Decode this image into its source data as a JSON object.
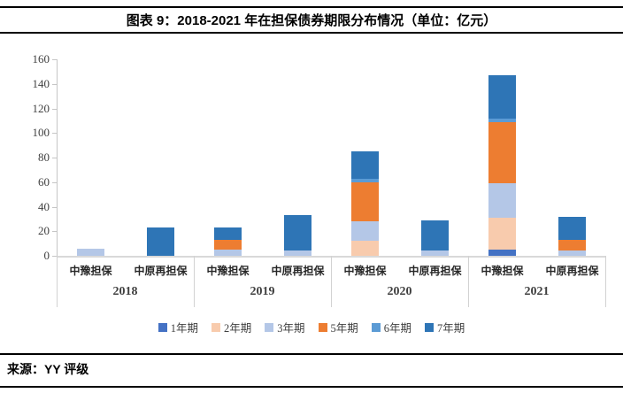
{
  "page": {
    "title": "图表 9：2018-2021 年在担保债券期限分布情况（单位：亿元）",
    "source": "来源：YY 评级"
  },
  "chart_data": {
    "type": "bar",
    "stacked": true,
    "title": "图表 9：2018-2021 年在担保债券期限分布情况（单位：亿元）",
    "unit": "亿元",
    "xlabel": "",
    "ylabel": "",
    "ylim": [
      0,
      160
    ],
    "ytick_step": 20,
    "yticks": [
      0,
      20,
      40,
      60,
      80,
      100,
      120,
      140,
      160
    ],
    "grid": false,
    "legend_position": "bottom",
    "series": [
      {
        "key": "y1",
        "name": "1年期",
        "color": "#4472C4"
      },
      {
        "key": "y2",
        "name": "2年期",
        "color": "#F8CBAD"
      },
      {
        "key": "y3",
        "name": "3年期",
        "color": "#B4C7E7"
      },
      {
        "key": "y5",
        "name": "5年期",
        "color": "#ED7D31"
      },
      {
        "key": "y6",
        "name": "6年期",
        "color": "#5B9BD5"
      },
      {
        "key": "y7",
        "name": "7年期",
        "color": "#2E75B6"
      }
    ],
    "groups": [
      {
        "year": "2018",
        "bars": [
          {
            "label": "中豫担保",
            "values": [
              0,
              0,
              6,
              0,
              0,
              0
            ],
            "total": 6
          },
          {
            "label": "中原再担保",
            "values": [
              0,
              0,
              0,
              0,
              0,
              23
            ],
            "total": 23
          }
        ]
      },
      {
        "year": "2019",
        "bars": [
          {
            "label": "中豫担保",
            "values": [
              0,
              0,
              5,
              8,
              0,
              10
            ],
            "total": 23
          },
          {
            "label": "中原再担保",
            "values": [
              0,
              0,
              4,
              0,
              0,
              29
            ],
            "total": 33
          }
        ]
      },
      {
        "year": "2020",
        "bars": [
          {
            "label": "中豫担保",
            "values": [
              0,
              12,
              16,
              32,
              3,
              22
            ],
            "total": 85
          },
          {
            "label": "中原再担保",
            "values": [
              0,
              0,
              4,
              0,
              0,
              25
            ],
            "total": 29
          }
        ]
      },
      {
        "year": "2021",
        "bars": [
          {
            "label": "中豫担保",
            "values": [
              5,
              26,
              28,
              50,
              3,
              35
            ],
            "total": 147
          },
          {
            "label": "中原再担保",
            "values": [
              0,
              0,
              4,
              9,
              0,
              19
            ],
            "total": 32
          }
        ]
      }
    ],
    "axis_colors": {
      "line": "#C6C6C6",
      "baseline": "#D9D9D9",
      "text": "#404040"
    }
  }
}
